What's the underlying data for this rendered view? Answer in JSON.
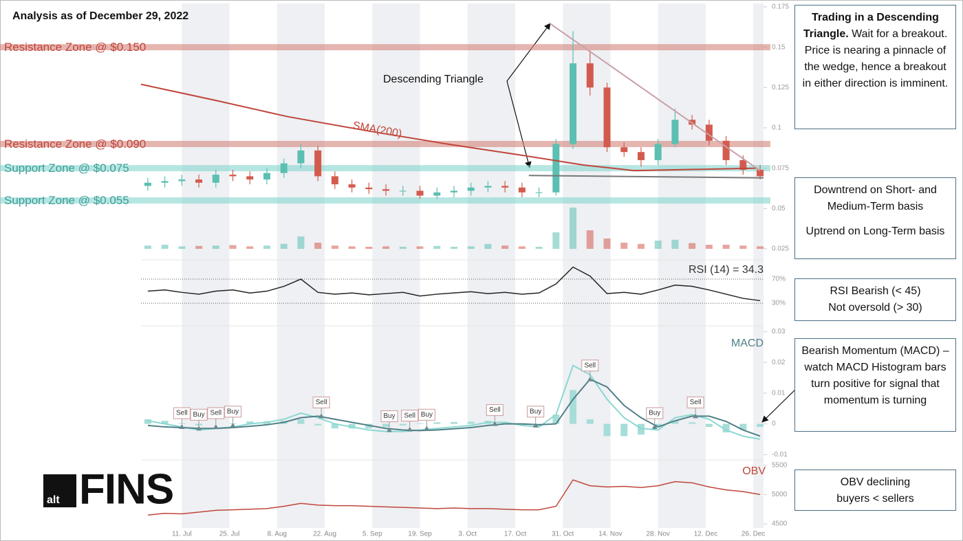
{
  "header": {
    "title": "Analysis as of December 29, 2022"
  },
  "logo": {
    "mark": "alt",
    "word": "FINS"
  },
  "chart_data": [
    {
      "type": "candlestick",
      "x": [
        -10,
        -5,
        0,
        5,
        10,
        15,
        20,
        25,
        30,
        35,
        40,
        45,
        50,
        55,
        60,
        65,
        70,
        75,
        80,
        85,
        90,
        95,
        100,
        105,
        110,
        115,
        120,
        125,
        130,
        135,
        140,
        145,
        150,
        155,
        160,
        165,
        170
      ],
      "open": [
        0.064,
        0.066,
        0.067,
        0.068,
        0.066,
        0.071,
        0.07,
        0.068,
        0.072,
        0.078,
        0.086,
        0.07,
        0.065,
        0.063,
        0.062,
        0.061,
        0.061,
        0.058,
        0.06,
        0.061,
        0.063,
        0.064,
        0.063,
        0.06,
        0.06,
        0.09,
        0.14,
        0.125,
        0.088,
        0.085,
        0.08,
        0.09,
        0.105,
        0.102,
        0.092,
        0.08,
        0.074
      ],
      "high": [
        0.069,
        0.07,
        0.071,
        0.071,
        0.074,
        0.074,
        0.073,
        0.075,
        0.081,
        0.09,
        0.089,
        0.073,
        0.068,
        0.066,
        0.065,
        0.064,
        0.064,
        0.063,
        0.064,
        0.066,
        0.067,
        0.067,
        0.066,
        0.063,
        0.093,
        0.16,
        0.148,
        0.128,
        0.091,
        0.088,
        0.093,
        0.112,
        0.108,
        0.105,
        0.095,
        0.083,
        0.077
      ],
      "low": [
        0.061,
        0.063,
        0.064,
        0.063,
        0.063,
        0.067,
        0.065,
        0.065,
        0.069,
        0.075,
        0.067,
        0.062,
        0.06,
        0.059,
        0.058,
        0.058,
        0.056,
        0.056,
        0.057,
        0.058,
        0.06,
        0.06,
        0.057,
        0.057,
        0.058,
        0.087,
        0.12,
        0.085,
        0.082,
        0.076,
        0.077,
        0.088,
        0.099,
        0.089,
        0.077,
        0.071,
        0.068
      ],
      "close": [
        0.066,
        0.067,
        0.068,
        0.066,
        0.071,
        0.07,
        0.068,
        0.072,
        0.078,
        0.086,
        0.07,
        0.065,
        0.063,
        0.062,
        0.061,
        0.061,
        0.058,
        0.06,
        0.061,
        0.063,
        0.064,
        0.063,
        0.06,
        0.06,
        0.09,
        0.14,
        0.125,
        0.088,
        0.085,
        0.08,
        0.09,
        0.105,
        0.102,
        0.092,
        0.08,
        0.074,
        0.07
      ],
      "volume": [
        8,
        10,
        6,
        7,
        8,
        9,
        6,
        8,
        12,
        30,
        15,
        8,
        6,
        5,
        6,
        5,
        6,
        7,
        5,
        6,
        12,
        8,
        6,
        5,
        40,
        100,
        45,
        25,
        15,
        12,
        20,
        22,
        14,
        10,
        10,
        8,
        6
      ],
      "up_color": "#5bbfb2",
      "down_color": "#d35b4e",
      "sma": {
        "label": "SMA(200)",
        "color": "#c0453a",
        "x": [
          -12,
          10,
          31,
          55,
          78,
          100,
          118,
          133,
          150,
          169
        ],
        "values": [
          0.127,
          0.117,
          0.107,
          0.098,
          0.09,
          0.083,
          0.077,
          0.0735,
          0.0742,
          0.075
        ]
      },
      "zones": [
        {
          "label": "Resistance Zone @ $0.150",
          "value": 0.15,
          "color": "#d4837c",
          "label_color": "#c0453a"
        },
        {
          "label": "Resistance Zone @ $0.090",
          "value": 0.09,
          "color": "#d4837c",
          "label_color": "#c0453a"
        },
        {
          "label": "Support Zone @ $0.075",
          "value": 0.075,
          "color": "#86d5cf",
          "label_color": "#3e9e9a"
        },
        {
          "label": "Support Zone @ $0.055",
          "value": 0.055,
          "color": "#86d5cf",
          "label_color": "#3e9e9a"
        }
      ],
      "trendlines": [
        {
          "x": [
            108,
            170
          ],
          "values": [
            0.165,
            0.0735
          ],
          "color": "#c9a0a8"
        },
        {
          "x": [
            102,
            171
          ],
          "values": [
            0.0705,
            0.069
          ],
          "color": "#777777"
        }
      ],
      "annotation": "Descending Triangle",
      "xlim": [
        -12,
        171
      ],
      "ylim": [
        0.025,
        0.175
      ],
      "yticks": [
        0.025,
        0.05,
        0.075,
        0.1,
        0.125,
        0.15,
        0.175
      ]
    },
    {
      "type": "line",
      "title": "RSI (14) = 34.3",
      "color": "#222222",
      "x": [
        -10,
        -5,
        0,
        5,
        10,
        15,
        20,
        25,
        30,
        35,
        40,
        45,
        50,
        55,
        60,
        65,
        70,
        75,
        80,
        85,
        90,
        95,
        100,
        105,
        110,
        115,
        120,
        125,
        130,
        135,
        140,
        145,
        150,
        155,
        160,
        165,
        170
      ],
      "values": [
        50,
        52,
        48,
        45,
        50,
        52,
        47,
        50,
        58,
        70,
        48,
        45,
        47,
        44,
        46,
        48,
        42,
        45,
        47,
        49,
        46,
        48,
        45,
        47,
        62,
        90,
        75,
        46,
        48,
        45,
        52,
        60,
        58,
        52,
        45,
        38,
        34.3
      ],
      "xlim": [
        -12,
        171
      ],
      "ylim": [
        -3,
        94
      ],
      "yticks": [
        {
          "value": 30,
          "label": "30%"
        },
        {
          "value": 70,
          "label": "70%"
        }
      ]
    },
    {
      "type": "macd",
      "title": "MACD",
      "title_color": "#4f7f86",
      "x": [
        -10,
        -5,
        0,
        5,
        10,
        15,
        20,
        25,
        30,
        35,
        40,
        45,
        50,
        55,
        60,
        65,
        70,
        75,
        80,
        85,
        90,
        95,
        100,
        105,
        110,
        115,
        120,
        125,
        130,
        135,
        140,
        145,
        150,
        155,
        160,
        165,
        170
      ],
      "series": [
        {
          "color": "#8ad8d2",
          "values": [
            0.001,
            0,
            -0.001,
            -0.002,
            -0.0015,
            -0.001,
            0,
            0.0005,
            0.0015,
            0.0035,
            0.002,
            0,
            -0.001,
            -0.002,
            -0.0025,
            -0.0025,
            -0.002,
            -0.0015,
            -0.001,
            -0.0005,
            0.0005,
            0.0005,
            -0.0005,
            -0.001,
            0.003,
            0.019,
            0.016,
            0.008,
            0.002,
            -0.0015,
            -0.002,
            0.002,
            0.003,
            0.0015,
            -0.002,
            -0.004,
            -0.005
          ]
        },
        {
          "color": "#4f7f86",
          "values": [
            -0.0005,
            -0.001,
            -0.0012,
            -0.0015,
            -0.0015,
            -0.0012,
            -0.0008,
            -0.0003,
            0.0005,
            0.002,
            0.0025,
            0.0015,
            0.0005,
            -0.0005,
            -0.0015,
            -0.002,
            -0.0022,
            -0.002,
            -0.0016,
            -0.0012,
            -0.0005,
            0,
            0,
            -0.0003,
            0,
            0.008,
            0.0145,
            0.012,
            0.006,
            0.002,
            -0.001,
            0.001,
            0.0025,
            0.0025,
            0.0008,
            -0.002,
            -0.004
          ]
        }
      ],
      "histogram": {
        "color": "#a7ddd8",
        "values": [
          0.0015,
          0.001,
          0.0002,
          -0.0005,
          0,
          0.0002,
          0.0008,
          0.0008,
          0.001,
          0.0015,
          -0.0005,
          -0.0015,
          -0.0015,
          -0.0015,
          -0.001,
          -0.0005,
          0.0002,
          0.0005,
          0.0006,
          0.0007,
          0.001,
          0.0005,
          -0.0005,
          -0.0007,
          0.003,
          0.011,
          0.0015,
          -0.004,
          -0.004,
          -0.0035,
          -0.001,
          0.001,
          0.0005,
          -0.001,
          -0.0028,
          -0.002,
          -0.001
        ]
      },
      "signals": [
        {
          "x": 0,
          "value": -0.001,
          "label": "Sell"
        },
        {
          "x": 5,
          "value": -0.0015,
          "label": "Buy"
        },
        {
          "x": 10,
          "value": -0.001,
          "label": "Sell"
        },
        {
          "x": 15,
          "value": -0.0005,
          "label": "Buy"
        },
        {
          "x": 41,
          "value": 0.0025,
          "label": "Sell"
        },
        {
          "x": 61,
          "value": -0.002,
          "label": "Buy"
        },
        {
          "x": 67,
          "value": -0.0018,
          "label": "Sell"
        },
        {
          "x": 72,
          "value": -0.0015,
          "label": "Buy"
        },
        {
          "x": 92,
          "value": 0,
          "label": "Sell"
        },
        {
          "x": 104,
          "value": -0.0005,
          "label": "Buy"
        },
        {
          "x": 120,
          "value": 0.0145,
          "label": "Sell"
        },
        {
          "x": 139,
          "value": -0.001,
          "label": "Buy"
        },
        {
          "x": 151,
          "value": 0.0025,
          "label": "Sell"
        }
      ],
      "xlim": [
        -12,
        171
      ],
      "ylim": [
        -0.0115,
        0.031
      ],
      "yticks": [
        -0.01,
        0,
        0.01,
        0.02,
        0.03
      ]
    },
    {
      "type": "line",
      "title": "OBV",
      "title_color": "#c0453a",
      "color": "#c0453a",
      "x": [
        -10,
        -5,
        0,
        5,
        10,
        15,
        20,
        25,
        30,
        35,
        40,
        45,
        50,
        55,
        60,
        65,
        70,
        75,
        80,
        85,
        90,
        95,
        100,
        105,
        110,
        115,
        120,
        125,
        130,
        135,
        140,
        145,
        150,
        155,
        160,
        165,
        170
      ],
      "values": [
        4650,
        4680,
        4670,
        4700,
        4730,
        4740,
        4750,
        4760,
        4800,
        4850,
        4820,
        4810,
        4810,
        4800,
        4790,
        4780,
        4770,
        4760,
        4770,
        4760,
        4760,
        4750,
        4740,
        4740,
        4800,
        5250,
        5150,
        5130,
        5140,
        5120,
        5150,
        5220,
        5200,
        5130,
        5080,
        5050,
        5000
      ],
      "xlim": [
        -12,
        171
      ],
      "ylim": [
        4430,
        5580
      ],
      "yticks": [
        4500,
        5000,
        5500
      ],
      "xticks": [
        {
          "value": 0,
          "label": "11. Jul"
        },
        {
          "value": 14,
          "label": "25. Jul"
        },
        {
          "value": 28,
          "label": "8. Aug"
        },
        {
          "value": 42,
          "label": "22. Aug"
        },
        {
          "value": 56,
          "label": "5. Sep"
        },
        {
          "value": 70,
          "label": "19. Sep"
        },
        {
          "value": 84,
          "label": "3. Oct"
        },
        {
          "value": 98,
          "label": "17. Oct"
        },
        {
          "value": 112,
          "label": "31. Oct"
        },
        {
          "value": 126,
          "label": "14. Nov"
        },
        {
          "value": 140,
          "label": "28. Nov"
        },
        {
          "value": 154,
          "label": "12. Dec"
        },
        {
          "value": 168,
          "label": "26. Dec"
        }
      ]
    }
  ],
  "notes": [
    {
      "bold": "Trading in a Descending Triangle.",
      "text": "Wait for a breakout.  Price is nearing a pinnacle of the wedge, hence a breakout in either direction is imminent."
    },
    {
      "paragraphs": [
        "Downtrend on Short- and Medium-Term basis",
        "Uptrend on Long-Term basis"
      ]
    },
    {
      "paragraphs": [
        "RSI Bearish (< 45)",
        "Not oversold (> 30)"
      ]
    },
    {
      "paragraphs": [
        "Bearish Momentum (MACD) – watch MACD Histogram bars turn positive for signal that momentum is turning"
      ]
    },
    {
      "paragraphs": [
        "OBV declining",
        "buyers < sellers"
      ]
    }
  ]
}
